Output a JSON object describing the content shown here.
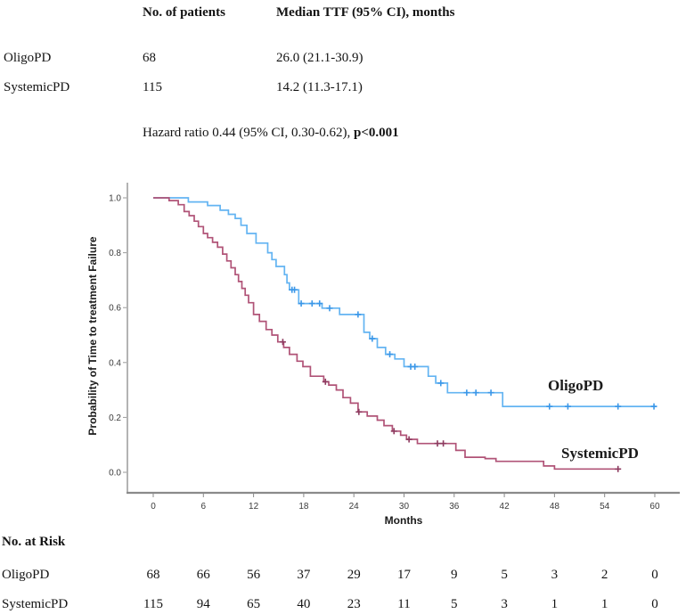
{
  "figure": {
    "summary_table": {
      "col_headers": [
        "No. of patients",
        "Median TTF (95% CI), months"
      ],
      "rows": [
        {
          "label": "OligoPD",
          "n": "68",
          "median": "26.0 (21.1-30.9)"
        },
        {
          "label": "SystemicPD",
          "n": "115",
          "median": "14.2 (11.3-17.1)"
        }
      ]
    },
    "hazard": {
      "normal": "Hazard ratio 0.44 (95% CI, 0.30-0.62), ",
      "bold": "p<0.001"
    },
    "at_risk": {
      "title": "No. at Risk",
      "months": [
        0,
        6,
        12,
        18,
        24,
        30,
        36,
        42,
        48,
        54,
        60
      ],
      "rows": [
        {
          "label": "OligoPD",
          "values": [
            68,
            66,
            56,
            37,
            29,
            17,
            9,
            5,
            3,
            2,
            0
          ]
        },
        {
          "label": "SystemicPD",
          "values": [
            115,
            94,
            65,
            40,
            23,
            11,
            5,
            3,
            1,
            1,
            0
          ]
        }
      ]
    }
  },
  "chart_data": {
    "type": "line",
    "subtype": "kaplan-meier-step",
    "title": "",
    "xlabel": "Months",
    "ylabel": "Probability of Time to treatment Failure",
    "xlim": [
      0,
      60
    ],
    "ylim": [
      0.0,
      1.0
    ],
    "xticks": [
      0,
      6,
      12,
      18,
      24,
      30,
      36,
      42,
      48,
      54,
      60
    ],
    "yticks": [
      0.0,
      0.2,
      0.4,
      0.6,
      0.8,
      1.0
    ],
    "grid": false,
    "legend_position": "labels-inside-plot",
    "axis_color": "#8a8a8a",
    "tick_text_color": "#3a3a3a",
    "series": [
      {
        "name": "OligoPD",
        "color": "#63b4f2",
        "censor_color": "#3b97e8",
        "end_month": 60.2,
        "steps": [
          [
            0,
            1.0
          ],
          [
            4.2,
            0.985
          ],
          [
            6.5,
            0.972
          ],
          [
            8.0,
            0.955
          ],
          [
            9.0,
            0.94
          ],
          [
            9.8,
            0.925
          ],
          [
            10.5,
            0.9
          ],
          [
            11.2,
            0.87
          ],
          [
            12.3,
            0.835
          ],
          [
            13.7,
            0.8
          ],
          [
            14.2,
            0.775
          ],
          [
            14.7,
            0.75
          ],
          [
            15.7,
            0.72
          ],
          [
            16.0,
            0.69
          ],
          [
            16.3,
            0.665
          ],
          [
            17.4,
            0.615
          ],
          [
            20.2,
            0.598
          ],
          [
            22.3,
            0.575
          ],
          [
            25.2,
            0.51
          ],
          [
            25.9,
            0.487
          ],
          [
            26.8,
            0.455
          ],
          [
            27.8,
            0.43
          ],
          [
            28.9,
            0.413
          ],
          [
            30.0,
            0.385
          ],
          [
            32.9,
            0.35
          ],
          [
            33.8,
            0.325
          ],
          [
            35.2,
            0.29
          ],
          [
            41.8,
            0.24
          ]
        ],
        "censor_months": [
          16.6,
          16.9,
          17.7,
          19.0,
          19.9,
          21.1,
          24.5,
          26.2,
          28.3,
          30.8,
          31.3,
          34.4,
          37.5,
          38.6,
          40.4,
          47.4,
          49.6,
          55.6,
          59.9
        ]
      },
      {
        "name": "SystemicPD",
        "color": "#b05377",
        "censor_color": "#8d3a5f",
        "end_month": 55.8,
        "steps": [
          [
            0,
            1.0
          ],
          [
            1.9,
            0.99
          ],
          [
            3.0,
            0.975
          ],
          [
            3.7,
            0.95
          ],
          [
            4.3,
            0.935
          ],
          [
            4.9,
            0.915
          ],
          [
            5.4,
            0.895
          ],
          [
            6.0,
            0.87
          ],
          [
            6.5,
            0.855
          ],
          [
            7.1,
            0.838
          ],
          [
            7.7,
            0.82
          ],
          [
            8.3,
            0.795
          ],
          [
            8.8,
            0.77
          ],
          [
            9.3,
            0.745
          ],
          [
            9.8,
            0.72
          ],
          [
            10.2,
            0.695
          ],
          [
            10.6,
            0.67
          ],
          [
            11.0,
            0.645
          ],
          [
            11.4,
            0.618
          ],
          [
            12.0,
            0.575
          ],
          [
            12.7,
            0.55
          ],
          [
            13.5,
            0.52
          ],
          [
            14.2,
            0.5
          ],
          [
            14.9,
            0.475
          ],
          [
            15.6,
            0.455
          ],
          [
            16.3,
            0.43
          ],
          [
            17.2,
            0.405
          ],
          [
            17.9,
            0.385
          ],
          [
            18.8,
            0.35
          ],
          [
            20.4,
            0.33
          ],
          [
            21.0,
            0.318
          ],
          [
            21.9,
            0.3
          ],
          [
            22.7,
            0.272
          ],
          [
            23.6,
            0.252
          ],
          [
            24.5,
            0.22
          ],
          [
            25.6,
            0.205
          ],
          [
            26.8,
            0.19
          ],
          [
            27.6,
            0.17
          ],
          [
            28.6,
            0.15
          ],
          [
            29.6,
            0.135
          ],
          [
            30.3,
            0.12
          ],
          [
            31.6,
            0.105
          ],
          [
            36.2,
            0.08
          ],
          [
            37.3,
            0.055
          ],
          [
            39.7,
            0.05
          ],
          [
            41.0,
            0.04
          ],
          [
            46.7,
            0.023
          ],
          [
            48.0,
            0.012
          ]
        ],
        "censor_months": [
          15.5,
          20.6,
          24.6,
          28.8,
          30.6,
          34.0,
          34.7,
          55.6
        ]
      }
    ]
  }
}
